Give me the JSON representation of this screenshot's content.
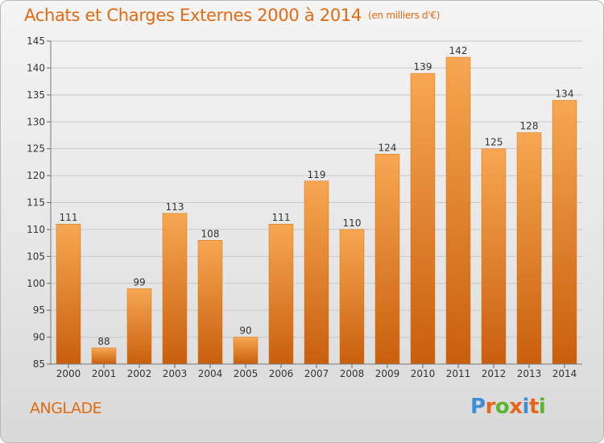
{
  "header": {
    "title": "Achats et Charges Externes 2000 à 2014",
    "unit": "(en milliers d'€)"
  },
  "footer": {
    "commune": "ANGLADE",
    "logo_letters": [
      "P",
      "r",
      "o",
      "x",
      "i",
      "t",
      "i"
    ],
    "logo_colors": [
      "#3b8fd6",
      "#e8661a",
      "#5cb531",
      "#e8661a",
      "#3b8fd6",
      "#e8661a",
      "#5cb531"
    ]
  },
  "colors": {
    "title": "#e26a10",
    "bar_top": "#f7a752",
    "bar_bottom": "#c85f0e",
    "axis_text": "#333333",
    "grid": "#c8c8c8"
  },
  "chart_data": {
    "type": "bar",
    "categories": [
      "2000",
      "2001",
      "2002",
      "2003",
      "2004",
      "2005",
      "2006",
      "2007",
      "2008",
      "2009",
      "2010",
      "2011",
      "2012",
      "2013",
      "2014"
    ],
    "values": [
      111,
      88,
      99,
      113,
      108,
      90,
      111,
      119,
      110,
      124,
      139,
      142,
      125,
      128,
      134
    ],
    "ylim": [
      85,
      145
    ],
    "yticks": [
      85,
      90,
      95,
      100,
      105,
      110,
      115,
      120,
      125,
      130,
      135,
      140,
      145
    ],
    "grid": true,
    "data_labels": true
  }
}
